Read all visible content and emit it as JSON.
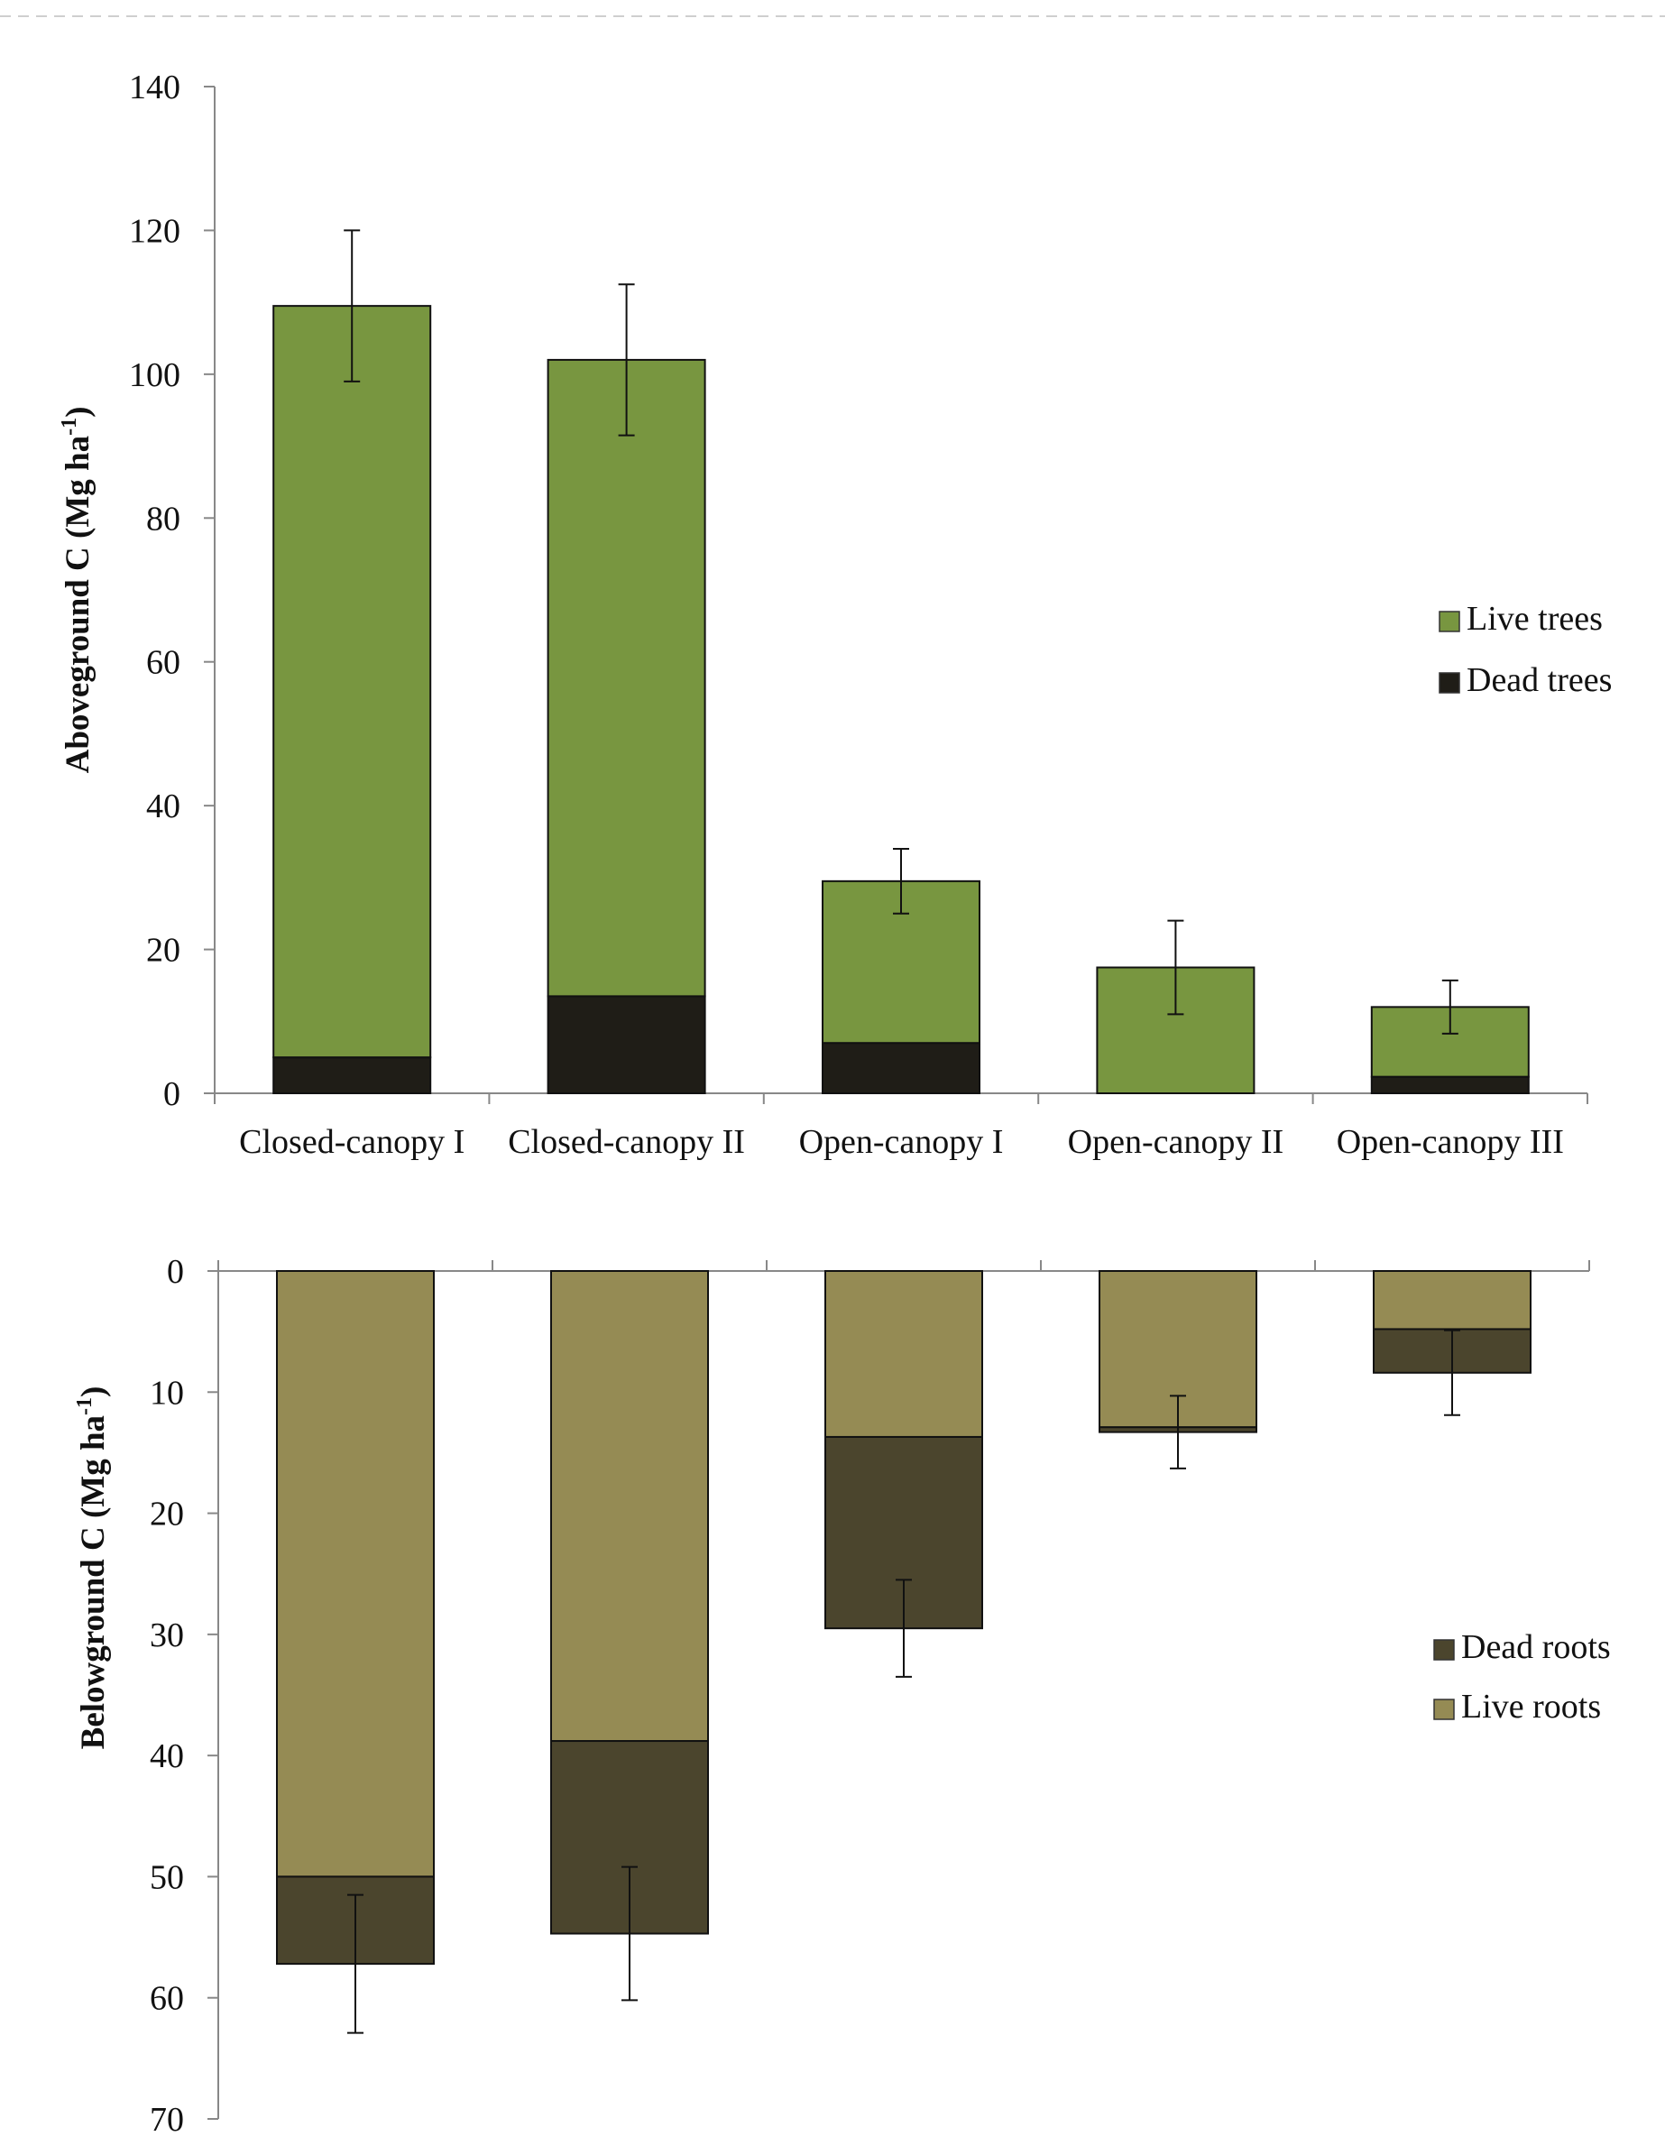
{
  "chart_data": [
    {
      "type": "bar",
      "stacked": true,
      "orientation": "up",
      "categories": [
        "Closed-canopy I",
        "Closed-canopy II",
        "Open-canopy I",
        "Open-canopy II",
        "Open-canopy III"
      ],
      "series": [
        {
          "name": "Dead trees",
          "values": [
            5,
            13.5,
            7,
            0,
            2.3
          ],
          "color": "#1f1d17"
        },
        {
          "name": "Live trees",
          "values": [
            104.5,
            88.5,
            22.5,
            17.5,
            9.7
          ],
          "color": "#789640"
        }
      ],
      "totals": [
        109.5,
        102,
        29.5,
        17.5,
        12
      ],
      "error": [
        10.5,
        10.5,
        4.5,
        6.5,
        3.7
      ],
      "ylabel": {
        "main": "Aboveground C  (Mg ha",
        "sup": "-1",
        "close": ")"
      },
      "ylim": [
        0,
        140
      ],
      "yticks": [
        0,
        20,
        40,
        60,
        80,
        100,
        120,
        140
      ],
      "legend": [
        {
          "name": "Live trees",
          "color": "#789640"
        },
        {
          "name": "Dead trees",
          "color": "#1f1d17"
        }
      ],
      "legend_position": "right"
    },
    {
      "type": "bar",
      "stacked": true,
      "orientation": "down",
      "categories": [
        "Closed-canopy I",
        "Closed-canopy II",
        "Open-canopy I",
        "Open-canopy II",
        "Open-canopy III"
      ],
      "series": [
        {
          "name": "Live roots",
          "values": [
            50,
            38.8,
            13.7,
            12.9,
            4.8
          ],
          "color": "#958b54"
        },
        {
          "name": "Dead roots",
          "values": [
            7.2,
            15.9,
            15.8,
            0.4,
            3.6
          ],
          "color": "#4b452d"
        }
      ],
      "totals": [
        57.2,
        54.7,
        29.5,
        13.3,
        8.4
      ],
      "error": [
        5.7,
        5.5,
        4,
        3,
        3.5
      ],
      "ylabel": {
        "main": "Belowground C (Mg ha",
        "sup": "-1",
        "close": ")"
      },
      "ylim": [
        0,
        70
      ],
      "yticks": [
        0,
        10,
        20,
        30,
        40,
        50,
        60,
        70
      ],
      "legend": [
        {
          "name": "Dead roots",
          "color": "#4b452d"
        },
        {
          "name": "Live roots",
          "color": "#958b54"
        }
      ],
      "legend_position": "right"
    }
  ]
}
